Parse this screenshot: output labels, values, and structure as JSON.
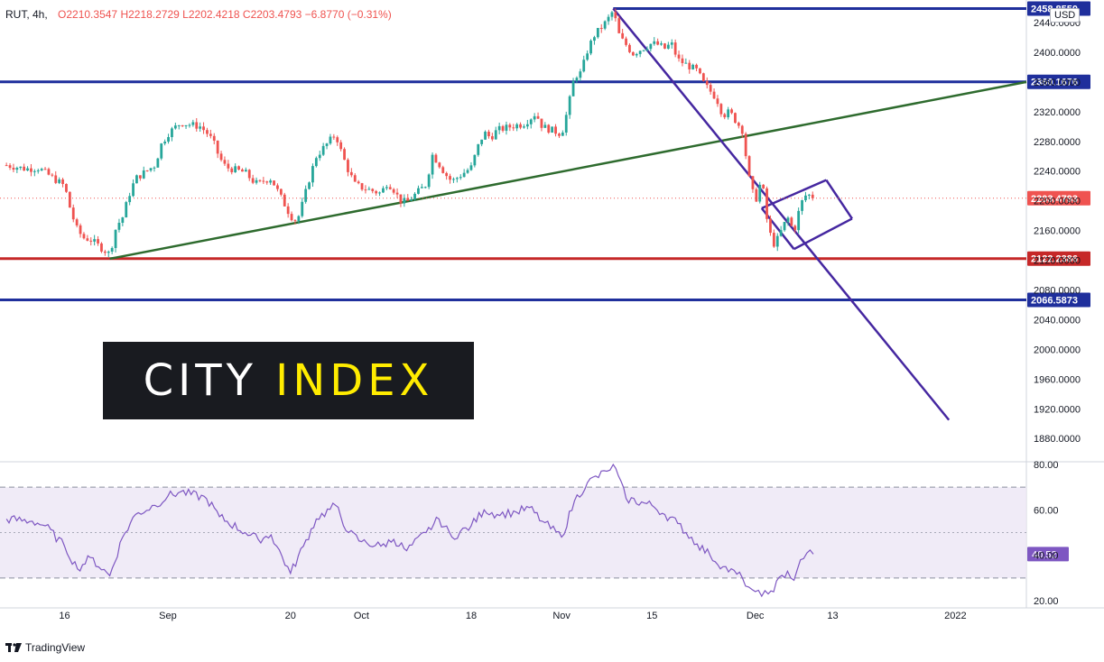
{
  "header": {
    "symbol": "RUT, 4h,",
    "open": "O2210.3547",
    "high": "H2218.2729",
    "low": "L2202.4218",
    "close": "C2203.4793",
    "change": "−6.8770 (−0.31%)"
  },
  "currency": "USD",
  "watermark": {
    "part1": "CITY ",
    "part2": "INDEX"
  },
  "branding": "TradingView",
  "colors": {
    "up": "#26a69a",
    "down": "#ef5350",
    "resistance": "#1f2f9c",
    "support": "#c62828",
    "trendline": "#2e6b2e",
    "channel": "#4527a0",
    "rsi": "#7e57c2",
    "rsi_band": "#ede7f6"
  },
  "chart_data": [
    {
      "type": "candlestick",
      "symbol": "RUT",
      "timeframe": "4h",
      "y_axis_ticks": [
        2440,
        2400,
        2360,
        2320,
        2280,
        2240,
        2200,
        2160,
        2120,
        2080,
        2040,
        2000,
        1960,
        1920,
        1880
      ],
      "y_axis_tick_labels": [
        "2440.0000",
        "2400.0000",
        "2360.0000",
        "2320.0000",
        "2280.0000",
        "2240.0000",
        "2200.0000",
        "2160.0000",
        "2120.0000",
        "2080.0000",
        "2040.0000",
        "2000.0000",
        "1960.0000",
        "1920.0000",
        "1880.0000"
      ],
      "ylim": [
        1858,
        2478
      ],
      "x_axis_ticks": [
        "16",
        "Sep",
        "20",
        "Oct",
        "18",
        "Nov",
        "15",
        "Dec",
        "13",
        "2022"
      ],
      "xlim": [
        "2021-08-06",
        "2022-01-12"
      ],
      "price_path": [
        [
          "2021-08-07",
          2248
        ],
        [
          "2021-08-10",
          2243
        ],
        [
          "2021-08-12",
          2244
        ],
        [
          "2021-08-13",
          2238
        ],
        [
          "2021-08-16",
          2220
        ],
        [
          "2021-08-17",
          2185
        ],
        [
          "2021-08-18",
          2160
        ],
        [
          "2021-08-19",
          2150
        ],
        [
          "2021-08-20",
          2148
        ],
        [
          "2021-08-23",
          2128
        ],
        [
          "2021-08-24",
          2165
        ],
        [
          "2021-08-25",
          2178
        ],
        [
          "2021-08-26",
          2208
        ],
        [
          "2021-08-27",
          2230
        ],
        [
          "2021-08-30",
          2248
        ],
        [
          "2021-08-31",
          2276
        ],
        [
          "2021-09-01",
          2290
        ],
        [
          "2021-09-02",
          2298
        ],
        [
          "2021-09-03",
          2305
        ],
        [
          "2021-09-06",
          2300
        ],
        [
          "2021-09-07",
          2292
        ],
        [
          "2021-09-08",
          2280
        ],
        [
          "2021-09-09",
          2258
        ],
        [
          "2021-09-10",
          2245
        ],
        [
          "2021-09-13",
          2238
        ],
        [
          "2021-09-14",
          2228
        ],
        [
          "2021-09-15",
          2222
        ],
        [
          "2021-09-16",
          2228
        ],
        [
          "2021-09-17",
          2230
        ],
        [
          "2021-09-20",
          2180
        ],
        [
          "2021-09-21",
          2172
        ],
        [
          "2021-09-22",
          2200
        ],
        [
          "2021-09-23",
          2232
        ],
        [
          "2021-09-24",
          2260
        ],
        [
          "2021-09-27",
          2290
        ],
        [
          "2021-09-28",
          2262
        ],
        [
          "2021-09-29",
          2240
        ],
        [
          "2021-09-30",
          2222
        ],
        [
          "2021-10-01",
          2218
        ],
        [
          "2021-10-04",
          2210
        ],
        [
          "2021-10-05",
          2225
        ],
        [
          "2021-10-06",
          2215
        ],
        [
          "2021-10-07",
          2200
        ],
        [
          "2021-10-08",
          2198
        ],
        [
          "2021-10-11",
          2222
        ],
        [
          "2021-10-12",
          2262
        ],
        [
          "2021-10-13",
          2250
        ],
        [
          "2021-10-14",
          2236
        ],
        [
          "2021-10-15",
          2226
        ],
        [
          "2021-10-18",
          2245
        ],
        [
          "2021-10-19",
          2272
        ],
        [
          "2021-10-20",
          2292
        ],
        [
          "2021-10-21",
          2285
        ],
        [
          "2021-10-22",
          2295
        ],
        [
          "2021-10-25",
          2302
        ],
        [
          "2021-10-26",
          2303
        ],
        [
          "2021-10-27",
          2310
        ],
        [
          "2021-10-28",
          2318
        ],
        [
          "2021-10-29",
          2300
        ],
        [
          "2021-11-01",
          2290
        ],
        [
          "2021-11-02",
          2325
        ],
        [
          "2021-11-03",
          2368
        ],
        [
          "2021-11-04",
          2372
        ],
        [
          "2021-11-05",
          2402
        ],
        [
          "2021-11-06",
          2422
        ],
        [
          "2021-11-08",
          2442
        ],
        [
          "2021-11-09",
          2456
        ],
        [
          "2021-11-10",
          2420
        ],
        [
          "2021-11-11",
          2410
        ],
        [
          "2021-11-12",
          2398
        ],
        [
          "2021-11-15",
          2412
        ],
        [
          "2021-11-16",
          2410
        ],
        [
          "2021-11-17",
          2405
        ],
        [
          "2021-11-18",
          2412
        ],
        [
          "2021-11-19",
          2390
        ],
        [
          "2021-11-22",
          2375
        ],
        [
          "2021-11-23",
          2358
        ],
        [
          "2021-11-24",
          2348
        ],
        [
          "2021-11-25",
          2338
        ],
        [
          "2021-11-26",
          2315
        ],
        [
          "2021-11-27",
          2320
        ],
        [
          "2021-11-29",
          2295
        ],
        [
          "2021-11-30",
          2232
        ],
        [
          "2021-12-01",
          2198
        ],
        [
          "2021-12-02",
          2230
        ],
        [
          "2021-12-03",
          2162
        ],
        [
          "2021-12-04",
          2140
        ],
        [
          "2021-12-06",
          2178
        ],
        [
          "2021-12-07",
          2158
        ],
        [
          "2021-12-08",
          2195
        ],
        [
          "2021-12-09",
          2210
        ],
        [
          "2021-12-10",
          2203
        ]
      ],
      "last_price": 2203.4793,
      "price_labels": [
        {
          "text": "2458.8550",
          "y": 2458.855,
          "color": "#1f2f9c"
        },
        {
          "text": "2360.1676",
          "y": 2360.1676,
          "color": "#1f2f9c"
        },
        {
          "text": "2203.4793",
          "y": 2203.4793,
          "color": "#ef5350"
        },
        {
          "text": "2122.2386",
          "y": 2122.2386,
          "color": "#c62828"
        },
        {
          "text": "2066.5873",
          "y": 2066.5873,
          "color": "#1f2f9c"
        }
      ],
      "horizontal_lines": [
        {
          "y": 2458.855,
          "from": "2021-11-09",
          "color": "#1f2f9c"
        },
        {
          "y": 2360.1676,
          "from": "2021-08-06",
          "color": "#1f2f9c"
        },
        {
          "y": 2122.2386,
          "from": "2021-08-06",
          "color": "#c62828"
        },
        {
          "y": 2066.5873,
          "from": "2021-08-06",
          "color": "#1f2f9c"
        }
      ],
      "trendlines": [
        {
          "from": [
            "2021-08-23",
            2122
          ],
          "to": [
            "2022-01-12",
            2360
          ],
          "color": "#2e6b2e"
        },
        {
          "from": [
            "2021-11-09",
            2458.855
          ],
          "to": [
            "2021-12-31",
            1905
          ],
          "color": "#4527a0"
        }
      ],
      "channel": [
        [
          [
            "2021-12-02",
            2190
          ],
          [
            "2021-12-12",
            2228
          ]
        ],
        [
          [
            "2021-12-12",
            2228
          ],
          [
            "2021-12-16",
            2176
          ]
        ],
        [
          [
            "2021-12-16",
            2176
          ],
          [
            "2021-12-07",
            2135
          ]
        ],
        [
          [
            "2021-12-07",
            2135
          ],
          [
            "2021-12-02",
            2190
          ]
        ]
      ],
      "last_price_line": true
    },
    {
      "type": "line",
      "name": "RSI",
      "y_axis_ticks": [
        80,
        60,
        40,
        20
      ],
      "y_axis_tick_labels": [
        "80.00",
        "60.00",
        "40.00",
        "20.00"
      ],
      "ylim": [
        18,
        80
      ],
      "bands": [
        30,
        50,
        70
      ],
      "last_value": 40.52,
      "last_value_label": "40.52",
      "rsi_path": [
        [
          "2021-08-07",
          56
        ],
        [
          "2021-08-11",
          55
        ],
        [
          "2021-08-13",
          53
        ],
        [
          "2021-08-16",
          44
        ],
        [
          "2021-08-18",
          34
        ],
        [
          "2021-08-20",
          39
        ],
        [
          "2021-08-23",
          31
        ],
        [
          "2021-08-25",
          48
        ],
        [
          "2021-08-27",
          58
        ],
        [
          "2021-08-30",
          62
        ],
        [
          "2021-09-01",
          66
        ],
        [
          "2021-09-03",
          68
        ],
        [
          "2021-09-07",
          65
        ],
        [
          "2021-09-09",
          57
        ],
        [
          "2021-09-13",
          50
        ],
        [
          "2021-09-15",
          47
        ],
        [
          "2021-09-17",
          49
        ],
        [
          "2021-09-20",
          32
        ],
        [
          "2021-09-22",
          44
        ],
        [
          "2021-09-24",
          56
        ],
        [
          "2021-09-27",
          62
        ],
        [
          "2021-09-29",
          50
        ],
        [
          "2021-10-01",
          46
        ],
        [
          "2021-10-04",
          44
        ],
        [
          "2021-10-06",
          47
        ],
        [
          "2021-10-08",
          42
        ],
        [
          "2021-10-11",
          50
        ],
        [
          "2021-10-13",
          56
        ],
        [
          "2021-10-15",
          48
        ],
        [
          "2021-10-18",
          53
        ],
        [
          "2021-10-20",
          60
        ],
        [
          "2021-10-22",
          58
        ],
        [
          "2021-10-25",
          59
        ],
        [
          "2021-10-27",
          61
        ],
        [
          "2021-10-29",
          55
        ],
        [
          "2021-11-01",
          48
        ],
        [
          "2021-11-03",
          64
        ],
        [
          "2021-11-05",
          72
        ],
        [
          "2021-11-08",
          77
        ],
        [
          "2021-11-09",
          80
        ],
        [
          "2021-11-11",
          65
        ],
        [
          "2021-11-15",
          62
        ],
        [
          "2021-11-17",
          58
        ],
        [
          "2021-11-19",
          54
        ],
        [
          "2021-11-22",
          45
        ],
        [
          "2021-11-24",
          40
        ],
        [
          "2021-11-26",
          35
        ],
        [
          "2021-11-29",
          30
        ],
        [
          "2021-11-30",
          26
        ],
        [
          "2021-12-01",
          24
        ],
        [
          "2021-12-02",
          22
        ],
        [
          "2021-12-03",
          23
        ],
        [
          "2021-12-06",
          33
        ],
        [
          "2021-12-07",
          29
        ],
        [
          "2021-12-08",
          38
        ],
        [
          "2021-12-09",
          41
        ],
        [
          "2021-12-10",
          40.52
        ]
      ]
    }
  ]
}
